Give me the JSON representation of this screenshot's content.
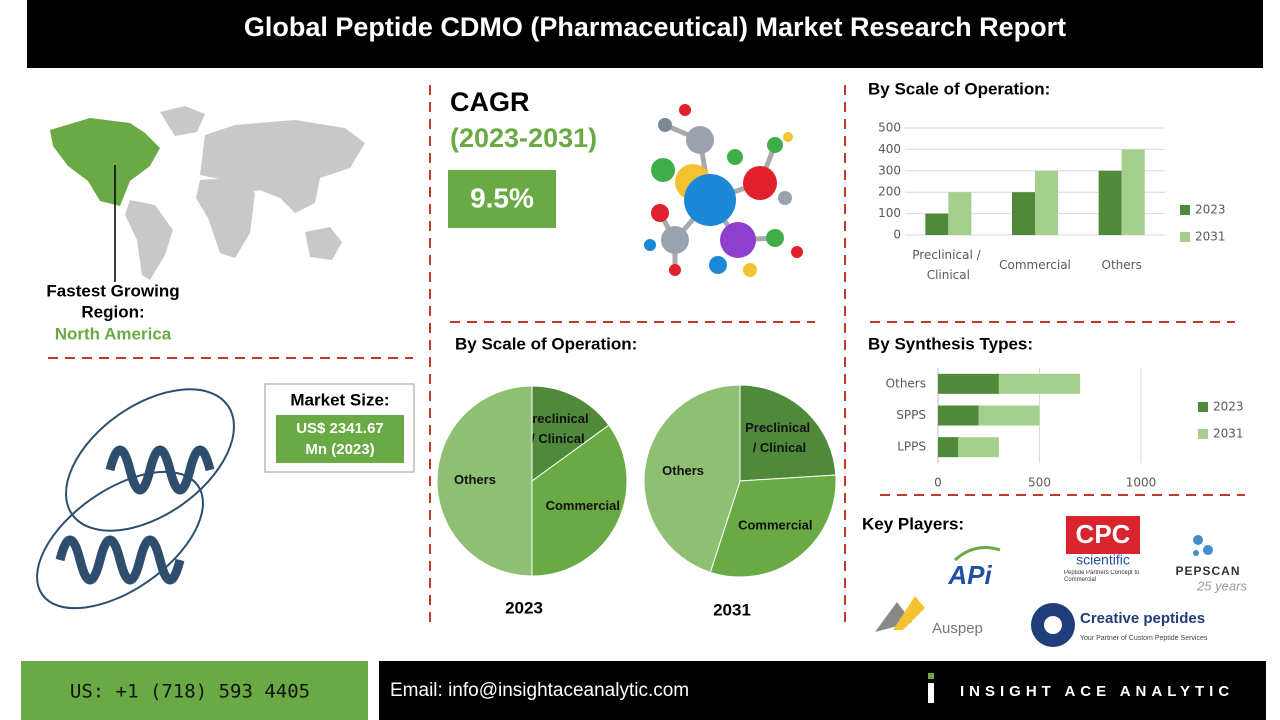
{
  "header": {
    "title": "Global  Peptide CDMO (Pharmaceutical) Market Research Report"
  },
  "region": {
    "label": [
      "Fastest Growing",
      "Region:"
    ],
    "value": "North America"
  },
  "cagr": {
    "label": "CAGR",
    "period": "(2023-2031)",
    "value": "9.5%"
  },
  "market_size": {
    "label": "Market Size:",
    "value": [
      "US$ 2341.67",
      "Mn (2023)"
    ]
  },
  "pie_heading": "By Scale of Operation:",
  "chart_data": [
    {
      "type": "bar",
      "orientation": "vertical",
      "title": "By Scale of Operation:",
      "categories": [
        "Preclinical / Clinical",
        "Commercial",
        "Others"
      ],
      "series": [
        {
          "name": "2023",
          "color": "#4e8a3a",
          "values": [
            100,
            200,
            300
          ]
        },
        {
          "name": "2031",
          "color": "#a5cf8c",
          "values": [
            200,
            300,
            400
          ]
        }
      ],
      "ylim": [
        0,
        500
      ],
      "yticks": [
        0,
        100,
        200,
        300,
        400,
        500
      ],
      "grid": true,
      "legend": "right"
    },
    {
      "type": "pie",
      "title": "2023",
      "categories": [
        "Preclinical / Clinical",
        "Commercial",
        "Others"
      ],
      "values": [
        15,
        35,
        50
      ],
      "colors": [
        "#4e8a3a",
        "#6aaa44",
        "#8fbf72"
      ]
    },
    {
      "type": "pie",
      "title": "2031",
      "categories": [
        "Preclinical / Clinical",
        "Commercial",
        "Others"
      ],
      "values": [
        24,
        31,
        45
      ],
      "colors": [
        "#4e8a3a",
        "#6aaa44",
        "#8fbf72"
      ]
    },
    {
      "type": "bar",
      "orientation": "horizontal",
      "stacked": true,
      "title": "By Synthesis Types:",
      "categories": [
        "Others",
        "SPPS",
        "LPPS"
      ],
      "series": [
        {
          "name": "2023",
          "color": "#4e8a3a",
          "values": [
            300,
            200,
            100
          ]
        },
        {
          "name": "2031",
          "color": "#a5cf8c",
          "values": [
            400,
            300,
            200
          ]
        }
      ],
      "xlim": [
        0,
        1000
      ],
      "xticks": [
        0,
        500,
        1000
      ],
      "grid": true,
      "legend": "right"
    }
  ],
  "key_players": {
    "label": "Key Players:",
    "logos": {
      "api": "APi",
      "cpc": "CPC",
      "cpc_sub": "scientific",
      "cpc_tag": "Peptide Partners Concept to Commercial",
      "pepscan": "PEPSCAN",
      "pepscan_tag": "25 years",
      "auspep": "Auspep",
      "creative": "Creative peptides",
      "creative_tag": "Your Partner of Custom Peptide Services"
    }
  },
  "footer": {
    "phone": "US: +1 (718) 593 4405",
    "email": "Email: info@insightaceanalytic.com",
    "brand": "INSIGHT ACE ANALYTIC"
  }
}
